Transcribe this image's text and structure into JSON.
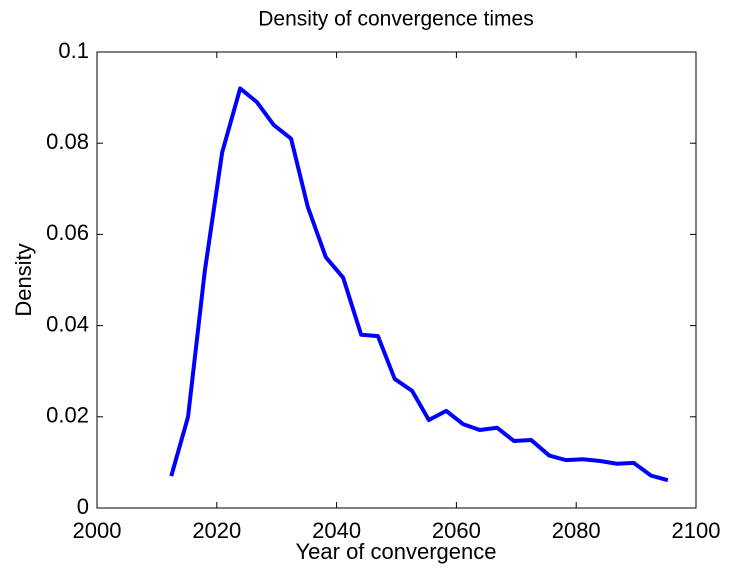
{
  "chart_data": {
    "type": "line",
    "title": "Density of convergence times",
    "x_label": "Year of convergence",
    "y_label": "Density",
    "x": [
      2012.4,
      2015.2,
      2018.0,
      2020.9,
      2023.9,
      2026.7,
      2029.5,
      2032.4,
      2035.2,
      2038.2,
      2041.1,
      2044.1,
      2046.9,
      2049.7,
      2052.6,
      2055.4,
      2058.3,
      2061.1,
      2063.9,
      2066.8,
      2069.6,
      2072.5,
      2075.5,
      2078.3,
      2081.1,
      2084.0,
      2086.8,
      2089.6,
      2092.5,
      2095.3
    ],
    "series": [
      {
        "name": "Density",
        "color": "#0000ff",
        "values": [
          0.007,
          0.02,
          0.052,
          0.078,
          0.092,
          0.089,
          0.084,
          0.081,
          0.066,
          0.055,
          0.0505,
          0.038,
          0.0377,
          0.0283,
          0.0257,
          0.0193,
          0.0213,
          0.0184,
          0.0171,
          0.0176,
          0.0147,
          0.0149,
          0.0115,
          0.0105,
          0.0107,
          0.0103,
          0.0097,
          0.0099,
          0.0071,
          0.0061
        ]
      }
    ],
    "xlim": [
      2000,
      2100
    ],
    "xticks": [
      2000,
      2020,
      2040,
      2060,
      2080,
      2100
    ],
    "ylim": [
      0,
      0.1
    ],
    "yticks": [
      0,
      0.02,
      0.04,
      0.06,
      0.08,
      0.1
    ],
    "grid": false
  }
}
